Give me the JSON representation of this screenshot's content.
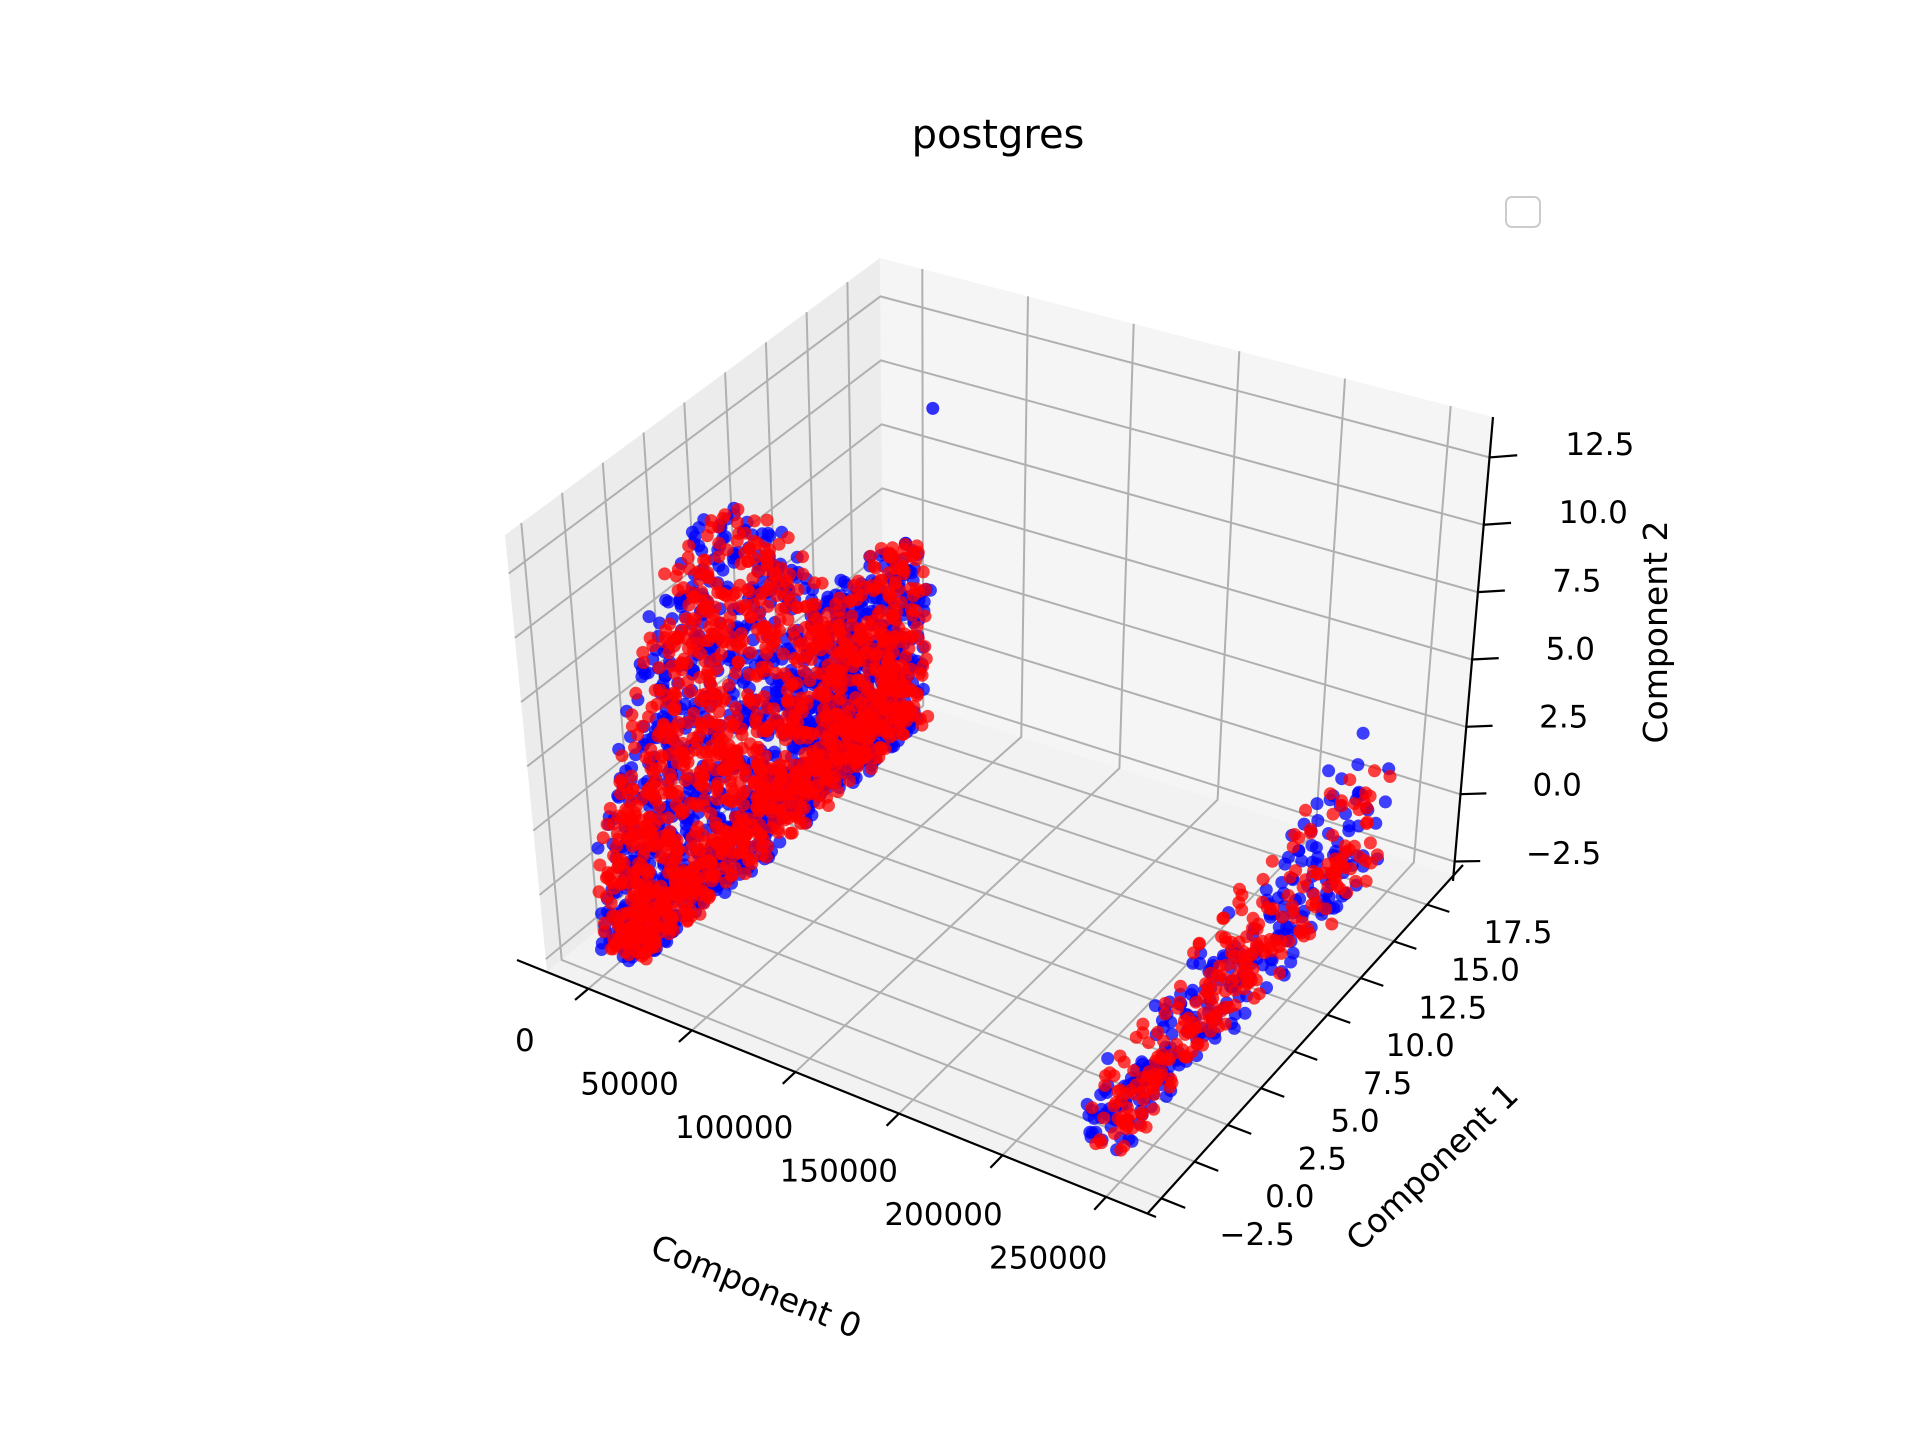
{
  "chart_data": {
    "type": "scatter",
    "projection": "3d",
    "title": "postgres",
    "xlabel": "Component 0",
    "ylabel": "Component 1",
    "zlabel": "Component 2",
    "xlim": [
      -20000,
      270000
    ],
    "ylim": [
      -3.5,
      19.5
    ],
    "zlim": [
      -3.0,
      14.0
    ],
    "x_ticks": [
      "0",
      "50000",
      "100000",
      "150000",
      "200000",
      "250000"
    ],
    "y_ticks": [
      "−2.5",
      "0.0",
      "2.5",
      "5.0",
      "7.5",
      "10.0",
      "12.5",
      "15.0",
      "17.5"
    ],
    "z_ticks": [
      "−2.5",
      "0.0",
      "2.5",
      "5.0",
      "7.5",
      "10.0",
      "12.5"
    ],
    "legend": {
      "placement": "top-right",
      "entries": []
    },
    "grid": true,
    "series": [
      {
        "color": "#0000ff",
        "marker": "circle",
        "alpha": 0.7,
        "clusters": [
          {
            "x_range": [
              0,
              20000
            ],
            "y_range": [
              -2.5,
              17.5
            ],
            "z_range": [
              -2,
              12.5
            ]
          },
          {
            "x_range": [
              230000,
              250000
            ],
            "y_range": [
              -2.5,
              17.5
            ],
            "z_range": [
              -2,
              2
            ]
          }
        ]
      },
      {
        "color": "#ff0000",
        "marker": "circle",
        "alpha": 0.7,
        "clusters": [
          {
            "x_range": [
              0,
              20000
            ],
            "y_range": [
              -2.5,
              17.5
            ],
            "z_range": [
              -2,
              12
            ]
          },
          {
            "x_range": [
              230000,
              250000
            ],
            "y_range": [
              -2.5,
              17.5
            ],
            "z_range": [
              -2,
              2
            ]
          }
        ]
      }
    ]
  }
}
